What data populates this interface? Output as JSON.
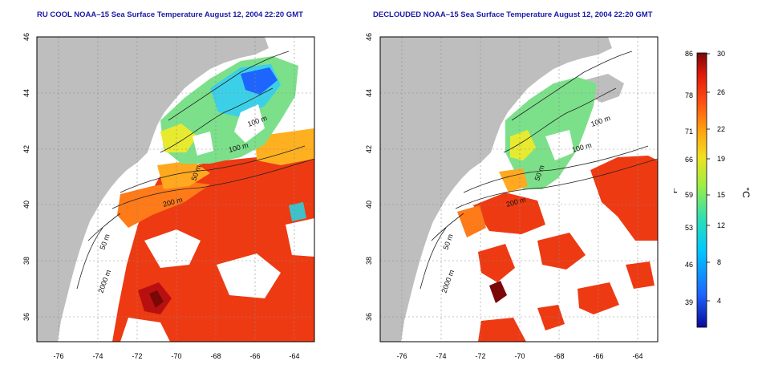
{
  "maps": [
    {
      "title": "RU COOL NOAA–15 Sea Surface Temperature August 12, 2004 22:20 GMT",
      "x_ticks": [
        "-76",
        "-74",
        "-72",
        "-70",
        "-68",
        "-66",
        "-64"
      ],
      "y_ticks": [
        "46",
        "44",
        "42",
        "40",
        "38",
        "36"
      ],
      "contour_labels": [
        "100 m",
        "100 m",
        "50 m",
        "200 m",
        "50 m",
        "2000 m"
      ]
    },
    {
      "title": "DECLOUDED NOAA–15 Sea Surface Temperature August 12, 2004 22:20 GMT",
      "x_ticks": [
        "-76",
        "-74",
        "-72",
        "-70",
        "-68",
        "-66",
        "-64"
      ],
      "y_ticks": [
        "46",
        "44",
        "42",
        "40",
        "38",
        "36"
      ],
      "contour_labels": [
        "100 m",
        "100 m",
        "50 m",
        "200 m",
        "50 m",
        "2000 m"
      ]
    }
  ],
  "colorbar": {
    "fahrenheit_ticks": [
      "86",
      "78",
      "71",
      "66",
      "59",
      "53",
      "46",
      "39"
    ],
    "celsius_ticks": [
      "30",
      "26",
      "22",
      "19",
      "15",
      "12",
      "8",
      "4"
    ],
    "left_label": "°F",
    "right_label": "°C",
    "colors": [
      "#0a0a9a",
      "#1e64ff",
      "#00c8ff",
      "#30e0b0",
      "#a0ee40",
      "#f0e020",
      "#ffa010",
      "#ff5010",
      "#e01a0a",
      "#7a0808"
    ]
  },
  "colors": {
    "land": "#bebebe",
    "water_cloud": "#ffffff",
    "grid": "#8a8a8a"
  }
}
